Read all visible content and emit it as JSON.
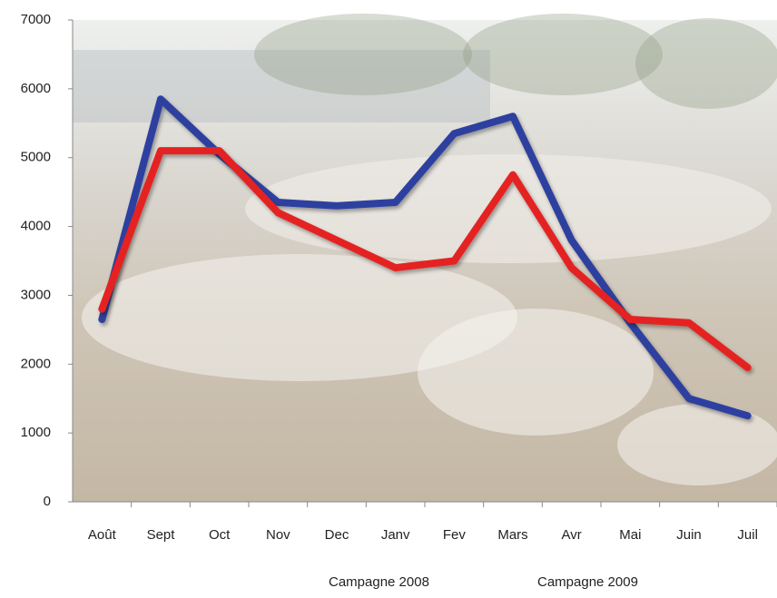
{
  "chart_data": {
    "type": "line",
    "categories": [
      "Août",
      "Sept",
      "Oct",
      "Nov",
      "Dec",
      "Janv",
      "Fev",
      "Mars",
      "Avr",
      "Mai",
      "Juin",
      "Juil"
    ],
    "series": [
      {
        "name": "Campagne 2008",
        "color": "#2f3f9f",
        "values": [
          2650,
          5850,
          5050,
          4350,
          4300,
          4350,
          5350,
          5600,
          3800,
          2600,
          1500,
          1250
        ]
      },
      {
        "name": "Campagne 2009",
        "color": "#e52420",
        "values": [
          2800,
          5100,
          5100,
          4200,
          3800,
          3400,
          3500,
          4750,
          3400,
          2650,
          2600,
          1950
        ]
      }
    ],
    "ylim": [
      0,
      7000
    ],
    "yticks": [
      0,
      1000,
      2000,
      3000,
      4000,
      5000,
      6000,
      7000
    ],
    "legend": "bottom"
  }
}
